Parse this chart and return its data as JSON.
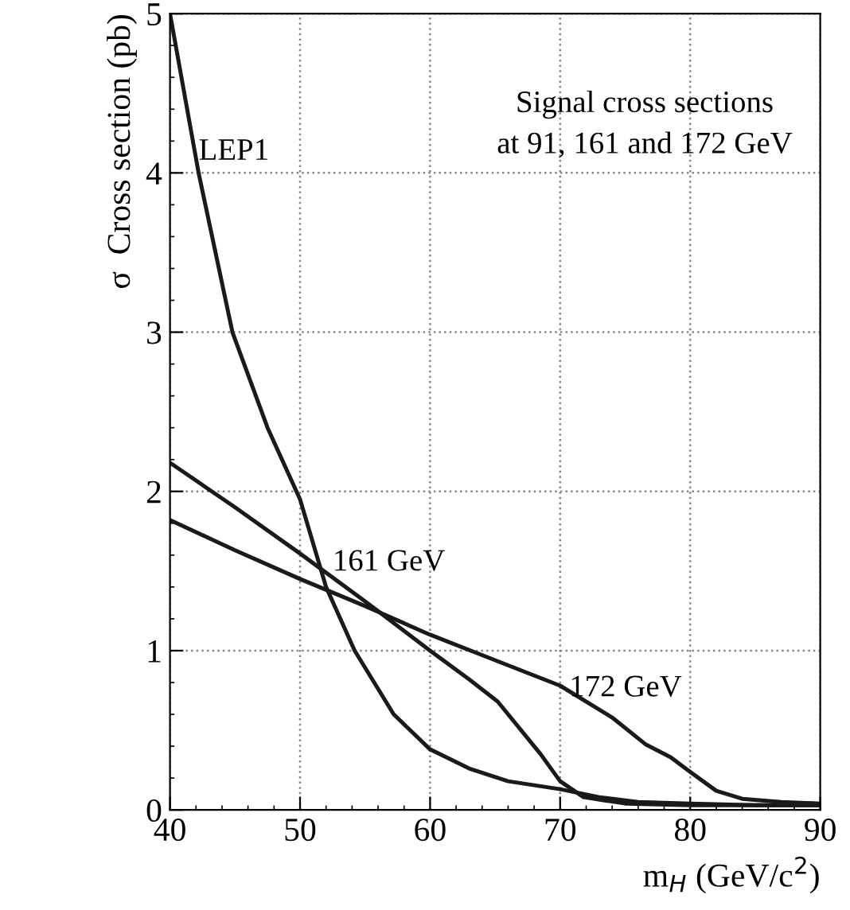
{
  "chart_data": {
    "type": "line",
    "xlabel": "m$_{H}$ (GeV/c$^{2}$)",
    "ylabel": "σ  Cross section (pb)",
    "xlim": [
      40,
      90
    ],
    "xticks": [
      40,
      50,
      60,
      70,
      80,
      90
    ],
    "ylim": [
      0,
      5
    ],
    "yticks": [
      0,
      1,
      2,
      3,
      4,
      5
    ],
    "grid": true,
    "marker": "none",
    "line_style": "solid",
    "series": [
      {
        "color": "#1a1a1a",
        "x": [
          40,
          42.2,
          44.8,
          47.5,
          50.0,
          52.0,
          54.2,
          57.2,
          60,
          63,
          66,
          70,
          73,
          76,
          80,
          85,
          90
        ],
        "values": [
          5.0,
          4.0,
          3.0,
          2.4,
          1.95,
          1.4,
          1.0,
          0.6,
          0.38,
          0.26,
          0.18,
          0.13,
          0.08,
          0.05,
          0.04,
          0.03,
          0.03
        ]
      },
      {
        "color": "#1a1a1a",
        "x": [
          40,
          45,
          50,
          55,
          60,
          63,
          65.2,
          68.5,
          70,
          71.8,
          75,
          80,
          90
        ],
        "values": [
          2.18,
          1.9,
          1.61,
          1.31,
          1.0,
          0.82,
          0.68,
          0.35,
          0.18,
          0.08,
          0.04,
          0.03,
          0.03
        ]
      },
      {
        "color": "#1a1a1a",
        "x": [
          40,
          45,
          50,
          55,
          60,
          65,
          70,
          74,
          76.6,
          78.5,
          79.8,
          82,
          84,
          87,
          90
        ],
        "values": [
          1.82,
          1.63,
          1.45,
          1.28,
          1.1,
          0.94,
          0.78,
          0.58,
          0.41,
          0.33,
          0.25,
          0.12,
          0.07,
          0.05,
          0.04
        ]
      }
    ],
    "annotations": [
      "LEP1",
      "161 GeV",
      "172 GeV",
      "Signal cross sections\nat 91, 161 and 172 GeV"
    ]
  }
}
